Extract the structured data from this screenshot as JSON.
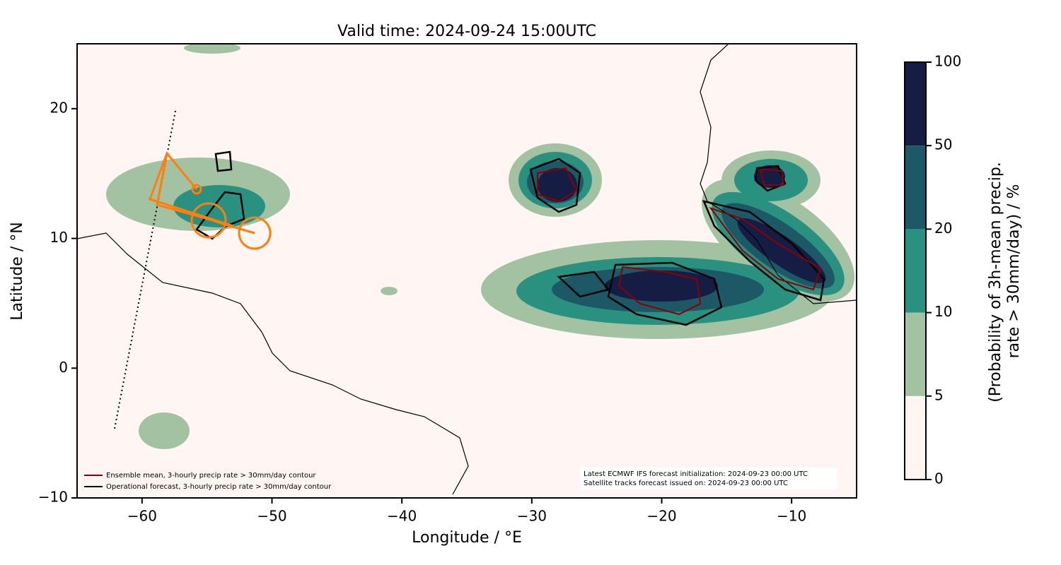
{
  "chart_data": {
    "type": "map",
    "title": "Valid time: 2024-09-24 15:00UTC",
    "xlabel": "Longitude / °E",
    "ylabel": "Latitude / °N",
    "xlim": [
      -65,
      -5
    ],
    "ylim": [
      -10,
      25
    ],
    "xticks": [
      {
        "value": -60,
        "label": "−60"
      },
      {
        "value": -50,
        "label": "−50"
      },
      {
        "value": -40,
        "label": "−40"
      },
      {
        "value": -30,
        "label": "−30"
      },
      {
        "value": -20,
        "label": "−20"
      },
      {
        "value": -10,
        "label": "−10"
      }
    ],
    "yticks": [
      {
        "value": -10,
        "label": "−10"
      },
      0,
      10,
      20
    ],
    "legend": [
      {
        "name": "Ensemble mean, 3-hourly precip rate > 30mm/day contour",
        "color": "#8b0000"
      },
      {
        "name": "Operational forecast, 3-hourly precip rate > 30mm/day contour",
        "color": "#000000"
      }
    ],
    "annotation": [
      "Latest ECMWF IFS forecast initialization: 2024-09-23 00:00 UTC",
      "Satellite tracks forecast issued on: 2024-09-23 00:00 UTC"
    ],
    "colorbar": {
      "label": [
        "(Probability of 3h-mean precip.",
        "rate > 30mm/day) / %"
      ],
      "levels": [
        0,
        5,
        10,
        20,
        50,
        100
      ],
      "colors": [
        "#fff5f3",
        "#a3c2a2",
        "#2a9080",
        "#1d5866",
        "#151d45"
      ]
    }
  }
}
